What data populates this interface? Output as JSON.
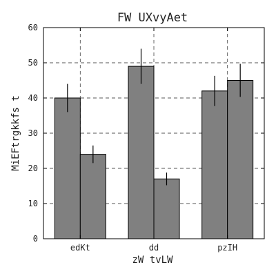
{
  "chart_data": {
    "type": "bar",
    "title": "FW  UXvyAet",
    "xlabel": "zW tvLW",
    "ylabel": "MiEFtrgkkfs t",
    "categories": [
      "edKt",
      "dd",
      "pzIH"
    ],
    "series": [
      {
        "values": [
          40,
          49,
          42
        ],
        "errors": [
          4,
          5,
          4.3
        ],
        "color": "#808080"
      },
      {
        "values": [
          24,
          17,
          45
        ],
        "errors": [
          2.5,
          1.8,
          4.7
        ],
        "color": "#808080"
      }
    ],
    "ylim": [
      0,
      60
    ],
    "yticks": [
      0,
      10,
      20,
      30,
      40,
      50,
      60
    ],
    "grid": true,
    "legend": "none"
  }
}
